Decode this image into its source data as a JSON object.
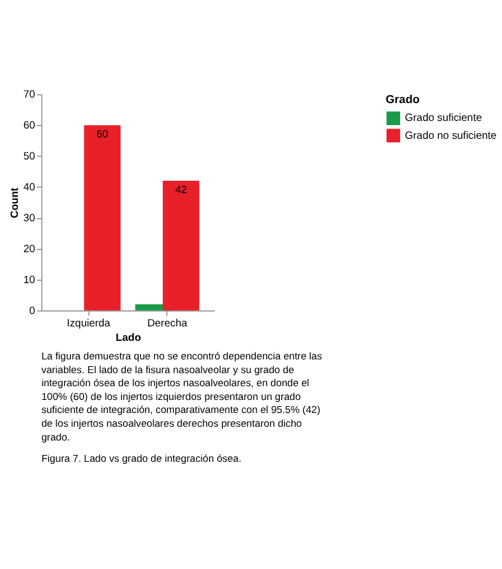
{
  "chart_data": {
    "type": "bar",
    "categories": [
      "Izquierda",
      "Derecha"
    ],
    "xlabel": "Lado",
    "ylabel": "Count",
    "legend_title": "Grado",
    "legend": "right",
    "ylim": [
      0,
      70
    ],
    "yticks": [
      0,
      10,
      20,
      30,
      40,
      50,
      60,
      70
    ],
    "grid": false,
    "series": [
      {
        "name": "Grado suficiente",
        "color": "#1a9a4a",
        "values": [
          0,
          2
        ]
      },
      {
        "name": "Grado no suficiente",
        "color": "#e8202a",
        "values": [
          60,
          42
        ],
        "value_labels": [
          "60",
          "42"
        ]
      }
    ],
    "annotations": [
      "La figura demuestra que no se encontró dependencia entre las variables. El lado de la fisura nasoalveolar y su grado de integración ósea de los injertos nasoalveolares, en donde el 100% (60) de los injertos izquierdos presentaron un grado suficiente de integración, comparativamente con el 95.5% (42) de los injertos nasoalveolares derechos presentaron dicho grado.",
      "Figura 7. Lado vs grado de integración ósea."
    ]
  }
}
